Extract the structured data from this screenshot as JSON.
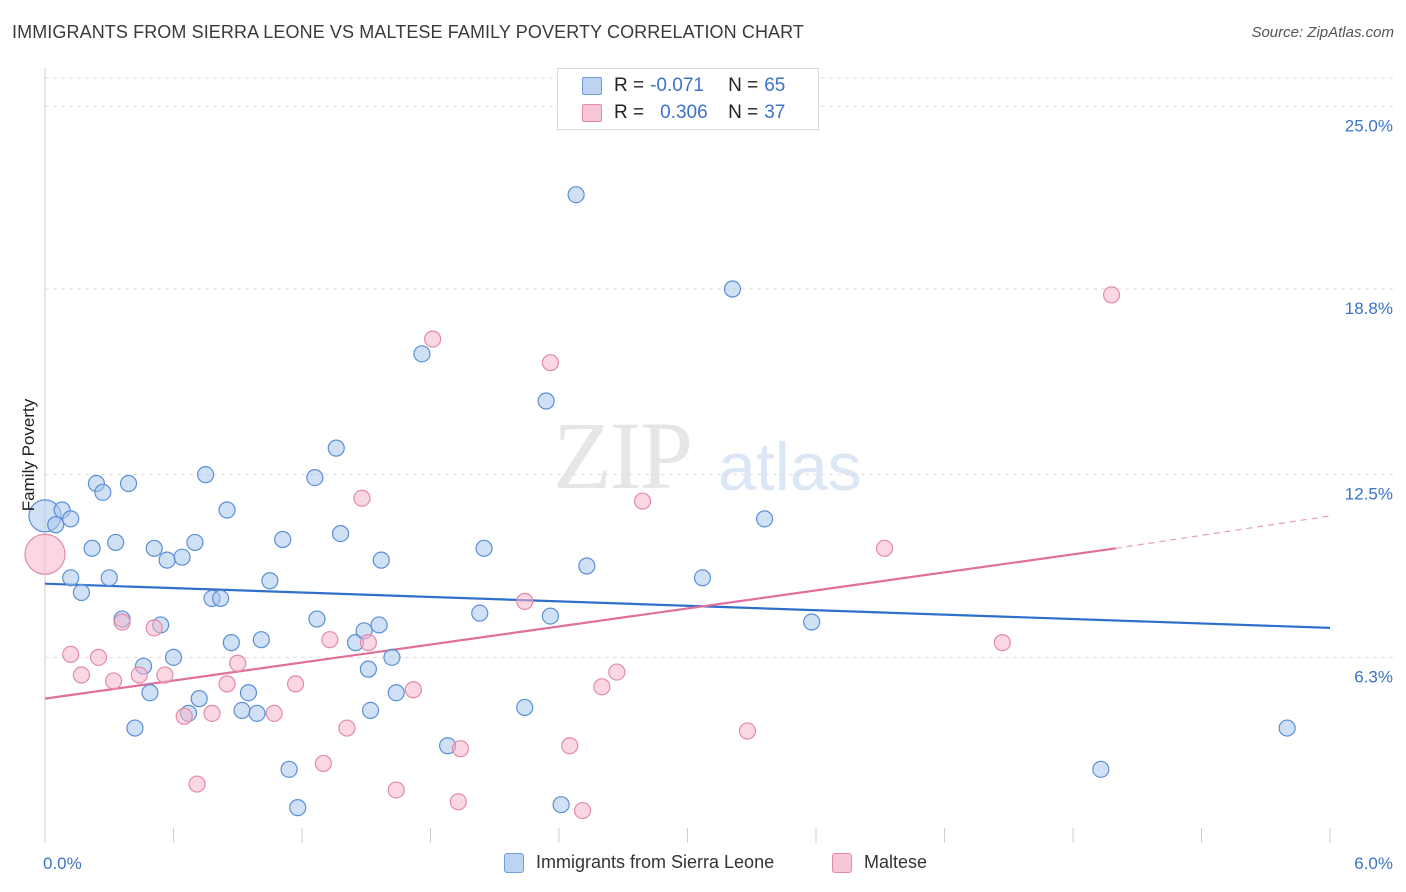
{
  "title": "IMMIGRANTS FROM SIERRA LEONE VS MALTESE FAMILY POVERTY CORRELATION CHART",
  "source": "Source: ZipAtlas.com",
  "watermark": {
    "zip": "ZIP",
    "atlas": "atlas"
  },
  "legend_top": {
    "rows": [
      {
        "r_label": "R =",
        "r_value": "-0.071",
        "n_label": "N =",
        "n_value": "65"
      },
      {
        "r_label": "R =",
        "r_value": "0.306",
        "n_label": "N =",
        "n_value": "37"
      }
    ]
  },
  "legend_bottom": {
    "items": [
      "Immigrants from Sierra Leone",
      "Maltese"
    ]
  },
  "colors": {
    "blue_fill": "#a9c8ef",
    "blue_stroke": "#5a8fd6",
    "blue_line": "#2f6fcb",
    "pink_fill": "#f6b6cb",
    "pink_stroke": "#e48aa8",
    "pink_line": "#e0709b",
    "tick_label": "#3a73c8",
    "grid": "#dddddd"
  },
  "chart_data": {
    "type": "scatter",
    "title": "IMMIGRANTS FROM SIERRA LEONE VS MALTESE FAMILY POVERTY CORRELATION CHART",
    "xlabel": "",
    "ylabel": "Family Poverty",
    "xlim": [
      0.0,
      6.0
    ],
    "ylim": [
      0.0,
      26.3
    ],
    "x_tick_labels": [
      "0.0%",
      "6.0%"
    ],
    "y_ticks": [
      6.3,
      12.5,
      18.8,
      25.0
    ],
    "y_tick_labels": [
      "6.3%",
      "12.5%",
      "18.8%",
      "25.0%"
    ],
    "grid": true,
    "legend_position": "top-center",
    "series": [
      {
        "name": "Immigrants from Sierra Leone",
        "r": -0.071,
        "n": 65,
        "trend": {
          "x": [
            0.0,
            6.0
          ],
          "y": [
            8.8,
            7.3
          ]
        },
        "points": [
          [
            0.0,
            11.1
          ],
          [
            0.05,
            10.8
          ],
          [
            0.08,
            11.3
          ],
          [
            0.12,
            11.0
          ],
          [
            0.12,
            9.0
          ],
          [
            0.17,
            8.5
          ],
          [
            0.22,
            10.0
          ],
          [
            0.24,
            12.2
          ],
          [
            0.27,
            11.9
          ],
          [
            0.3,
            9.0
          ],
          [
            0.33,
            10.2
          ],
          [
            0.36,
            7.6
          ],
          [
            0.39,
            12.2
          ],
          [
            0.42,
            3.9
          ],
          [
            0.46,
            6.0
          ],
          [
            0.49,
            5.1
          ],
          [
            0.51,
            10.0
          ],
          [
            0.54,
            7.4
          ],
          [
            0.57,
            9.6
          ],
          [
            0.6,
            6.3
          ],
          [
            0.64,
            9.7
          ],
          [
            0.67,
            4.4
          ],
          [
            0.7,
            10.2
          ],
          [
            0.72,
            4.9
          ],
          [
            0.75,
            12.5
          ],
          [
            0.78,
            8.3
          ],
          [
            0.82,
            8.3
          ],
          [
            0.85,
            11.3
          ],
          [
            0.87,
            6.8
          ],
          [
            0.92,
            4.5
          ],
          [
            0.95,
            5.1
          ],
          [
            0.99,
            4.4
          ],
          [
            1.01,
            6.9
          ],
          [
            1.05,
            8.9
          ],
          [
            1.11,
            10.3
          ],
          [
            1.14,
            2.5
          ],
          [
            1.18,
            1.2
          ],
          [
            1.26,
            12.4
          ],
          [
            1.27,
            7.6
          ],
          [
            1.36,
            13.4
          ],
          [
            1.38,
            10.5
          ],
          [
            1.45,
            6.8
          ],
          [
            1.49,
            7.2
          ],
          [
            1.51,
            5.9
          ],
          [
            1.52,
            4.5
          ],
          [
            1.56,
            7.4
          ],
          [
            1.57,
            9.6
          ],
          [
            1.62,
            6.3
          ],
          [
            1.64,
            5.1
          ],
          [
            1.76,
            16.6
          ],
          [
            1.88,
            3.3
          ],
          [
            2.03,
            7.8
          ],
          [
            2.05,
            10.0
          ],
          [
            2.24,
            4.6
          ],
          [
            2.34,
            15.0
          ],
          [
            2.36,
            7.7
          ],
          [
            2.41,
            1.3
          ],
          [
            2.48,
            22.0
          ],
          [
            2.53,
            9.4
          ],
          [
            3.07,
            9.0
          ],
          [
            3.21,
            18.8
          ],
          [
            3.36,
            11.0
          ],
          [
            3.58,
            7.5
          ],
          [
            4.93,
            2.5
          ],
          [
            5.8,
            3.9
          ]
        ]
      },
      {
        "name": "Maltese",
        "r": 0.306,
        "n": 37,
        "trend": {
          "x": [
            0.0,
            5.0
          ],
          "y": [
            4.9,
            10.0
          ]
        },
        "trend_dashed": {
          "x": [
            5.0,
            6.0
          ],
          "y": [
            10.0,
            11.1
          ]
        },
        "points": [
          [
            0.0,
            9.8
          ],
          [
            0.12,
            6.4
          ],
          [
            0.17,
            5.7
          ],
          [
            0.25,
            6.3
          ],
          [
            0.32,
            5.5
          ],
          [
            0.36,
            7.5
          ],
          [
            0.44,
            5.7
          ],
          [
            0.51,
            7.3
          ],
          [
            0.56,
            5.7
          ],
          [
            0.65,
            4.3
          ],
          [
            0.71,
            2.0
          ],
          [
            0.78,
            4.4
          ],
          [
            0.85,
            5.4
          ],
          [
            0.9,
            6.1
          ],
          [
            1.07,
            4.4
          ],
          [
            1.17,
            5.4
          ],
          [
            1.3,
            2.7
          ],
          [
            1.33,
            6.9
          ],
          [
            1.41,
            3.9
          ],
          [
            1.48,
            11.7
          ],
          [
            1.51,
            6.8
          ],
          [
            1.64,
            1.8
          ],
          [
            1.72,
            5.2
          ],
          [
            1.81,
            17.1
          ],
          [
            1.93,
            1.4
          ],
          [
            1.94,
            3.2
          ],
          [
            2.24,
            8.2
          ],
          [
            2.36,
            16.3
          ],
          [
            2.45,
            3.3
          ],
          [
            2.51,
            1.1
          ],
          [
            2.6,
            5.3
          ],
          [
            2.67,
            5.8
          ],
          [
            2.79,
            11.6
          ],
          [
            3.28,
            3.8
          ],
          [
            3.92,
            10.0
          ],
          [
            4.47,
            6.8
          ],
          [
            4.98,
            18.6
          ]
        ]
      }
    ]
  }
}
